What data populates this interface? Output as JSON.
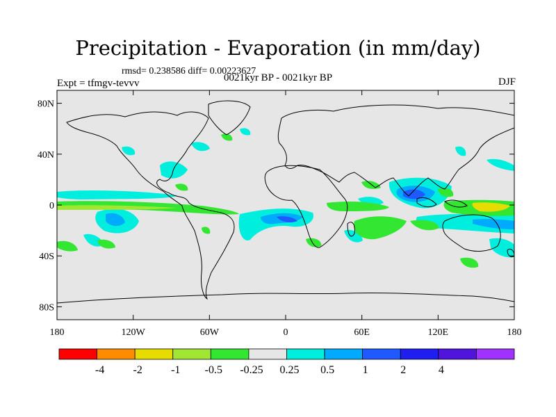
{
  "title": "Precipitation - Evaporation (in mm/day)",
  "stats": "rmsd= 0.238586 diff= 0.00223627",
  "subtitle": "0021kyr BP - 0021kyr BP",
  "experiment": "Expt = tfmgv-tevvv",
  "season": "DJF",
  "lat_ticks": [
    {
      "label": "80N",
      "value": 80
    },
    {
      "label": "40N",
      "value": 40
    },
    {
      "label": "0",
      "value": 0
    },
    {
      "label": "40S",
      "value": -40
    },
    {
      "label": "80S",
      "value": -80
    }
  ],
  "lon_ticks": [
    {
      "label": "180",
      "value": -180
    },
    {
      "label": "120W",
      "value": -120
    },
    {
      "label": "60W",
      "value": -60
    },
    {
      "label": "0",
      "value": 0
    },
    {
      "label": "60E",
      "value": 60
    },
    {
      "label": "120E",
      "value": 120
    },
    {
      "label": "180",
      "value": 180
    }
  ],
  "colorbar": {
    "colors": [
      "#ff0000",
      "#ff8c00",
      "#e6dc00",
      "#a0e632",
      "#32e632",
      "#e6e6e6",
      "#00eedd",
      "#00aaff",
      "#1e5aff",
      "#1e1ef0",
      "#5014dc",
      "#a032ff"
    ],
    "labels": [
      "-4",
      "-2",
      "-1",
      "-0.5",
      "-0.25",
      "0.25",
      "0.5",
      "1",
      "2",
      "4"
    ]
  },
  "field_levels": {
    "drying_strong": "#a0e632",
    "drying": "#32e632",
    "wetting": "#00eedd",
    "wetting_more": "#00aaff",
    "wetting_strong": "#1e5aff",
    "drying_max": "#e6dc00"
  }
}
